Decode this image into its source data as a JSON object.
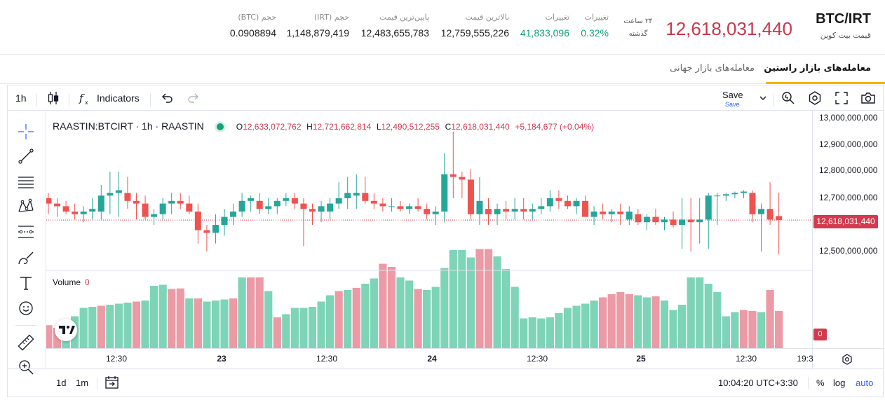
{
  "header": {
    "pair": "BTC/IRT",
    "pair_subtitle": "قیمت بیت کوین",
    "last_price": "12,618,031,440",
    "period_label_1": "۲۴ ساعت",
    "period_label_2": "گذشته",
    "stats": [
      {
        "label": "تغییرات",
        "value": "0.32%",
        "color": "green"
      },
      {
        "label": "تغییرات",
        "value": "41,833,096",
        "color": "green"
      },
      {
        "label": "بالاترین قیمت",
        "value": "12,759,555,226",
        "color": "dark"
      },
      {
        "label": "پایین‌ترین قیمت",
        "value": "12,483,655,783",
        "color": "dark"
      },
      {
        "label": "حجم (IRT)",
        "value": "1,148,879,419",
        "color": "dark"
      },
      {
        "label": "حجم (BTC)",
        "value": "0.0908894",
        "color": "dark"
      }
    ]
  },
  "tabs": {
    "active": "معامله‌های بازار راستین",
    "inactive": "معامله‌های بازار جهانی"
  },
  "toolbar": {
    "interval": "1h",
    "indicators": "Indicators",
    "save": "Save",
    "save_sub": "Save"
  },
  "legend": {
    "symbol": "RAASTIN:BTCIRT · 1h · RAASTIN",
    "o_label": "O",
    "o_value": "12,633,072,762",
    "h_label": "H",
    "h_value": "12,721,662,814",
    "l_label": "L",
    "l_value": "12,490,512,255",
    "c_label": "C",
    "c_value": "12,618,031,440",
    "change": "+5,184,677 (+0.04%)",
    "volume_label": "Volume",
    "volume_value": "0"
  },
  "price_tag": "12,618,031,440",
  "volume_tag": "0",
  "bottom_bar": {
    "range_1d": "1d",
    "range_1m": "1m",
    "time": "10:04:20 UTC+3:30",
    "percent": "%",
    "log": "log",
    "auto": "auto"
  },
  "colors": {
    "up": "#26a69a",
    "down": "#ef5350",
    "vol_up": "#7ed4b7",
    "vol_down": "#eb9aa6",
    "brand_red": "#c8374c",
    "accent_yellow": "#f2b410"
  },
  "chart_data": {
    "type": "candlestick",
    "interval": "1h",
    "y_ticks": [
      "13,000,000,000",
      "12,900,000,000",
      "12,800,000,000",
      "12,700,000,000",
      "12,600,000,000",
      "12,500,000,000"
    ],
    "x_ticks": [
      {
        "label": "12:30",
        "bold": false
      },
      {
        "label": "23",
        "bold": true
      },
      {
        "label": "12:30",
        "bold": false
      },
      {
        "label": "24",
        "bold": true
      },
      {
        "label": "12:30",
        "bold": false
      },
      {
        "label": "25",
        "bold": true
      },
      {
        "label": "12:30",
        "bold": false
      },
      {
        "label": "19:3",
        "bold": false
      }
    ],
    "ylim": [
      12450000000,
      13040000000
    ],
    "last_close": 12618031440,
    "candles": [
      [
        12700,
        12720,
        12640,
        12680
      ],
      [
        12680,
        12700,
        12630,
        12670
      ],
      [
        12670,
        12690,
        12640,
        12650
      ],
      [
        12650,
        12680,
        12620,
        12640
      ],
      [
        12640,
        12670,
        12610,
        12650
      ],
      [
        12650,
        12700,
        12620,
        12660
      ],
      [
        12650,
        12750,
        12620,
        12710
      ],
      [
        12710,
        12800,
        12640,
        12720
      ],
      [
        12720,
        12800,
        12630,
        12730
      ],
      [
        12720,
        12780,
        12660,
        12690
      ],
      [
        12690,
        12720,
        12620,
        12680
      ],
      [
        12680,
        12710,
        12620,
        12630
      ],
      [
        12630,
        12660,
        12600,
        12640
      ],
      [
        12640,
        12700,
        12620,
        12680
      ],
      [
        12680,
        12720,
        12640,
        12690
      ],
      [
        12690,
        12720,
        12660,
        12680
      ],
      [
        12680,
        12710,
        12640,
        12650
      ],
      [
        12650,
        12680,
        12530,
        12580
      ],
      [
        12580,
        12600,
        12500,
        12570
      ],
      [
        12570,
        12640,
        12530,
        12600
      ],
      [
        12600,
        12660,
        12560,
        12630
      ],
      [
        12630,
        12680,
        12600,
        12650
      ],
      [
        12650,
        12720,
        12630,
        12690
      ],
      [
        12690,
        12710,
        12650,
        12700
      ],
      [
        12690,
        12720,
        12640,
        12660
      ],
      [
        12660,
        12700,
        12640,
        12670
      ],
      [
        12670,
        12700,
        12640,
        12690
      ],
      [
        12690,
        12720,
        12670,
        12700
      ],
      [
        12700,
        12720,
        12660,
        12680
      ],
      [
        12680,
        12700,
        12520,
        12660
      ],
      [
        12660,
        12680,
        12600,
        12650
      ],
      [
        12650,
        12690,
        12610,
        12670
      ],
      [
        12650,
        12700,
        12620,
        12680
      ],
      [
        12680,
        12760,
        12660,
        12700
      ],
      [
        12700,
        12780,
        12660,
        12720
      ],
      [
        12710,
        12790,
        12660,
        12720
      ],
      [
        12720,
        12780,
        12680,
        12690
      ],
      [
        12690,
        12720,
        12660,
        12680
      ],
      [
        12680,
        12700,
        12650,
        12670
      ],
      [
        12670,
        12700,
        12650,
        12670
      ],
      [
        12670,
        12690,
        12650,
        12660
      ],
      [
        12660,
        12680,
        12640,
        12670
      ],
      [
        12670,
        12700,
        12650,
        12660
      ],
      [
        12660,
        12680,
        12620,
        12640
      ],
      [
        12640,
        12670,
        12600,
        12650
      ],
      [
        12650,
        12870,
        12610,
        12790
      ],
      [
        12790,
        12950,
        12700,
        12780
      ],
      [
        12780,
        12800,
        12700,
        12770
      ],
      [
        12770,
        12810,
        12620,
        12640
      ],
      [
        12640,
        12780,
        12600,
        12690
      ],
      [
        12660,
        12700,
        12600,
        12640
      ],
      [
        12640,
        12680,
        12600,
        12660
      ],
      [
        12660,
        12690,
        12620,
        12650
      ],
      [
        12650,
        12700,
        12620,
        12660
      ],
      [
        12660,
        12700,
        12620,
        12650
      ],
      [
        12650,
        12680,
        12620,
        12660
      ],
      [
        12660,
        12700,
        12640,
        12670
      ],
      [
        12670,
        12730,
        12650,
        12700
      ],
      [
        12700,
        12730,
        12660,
        12690
      ],
      [
        12690,
        12710,
        12660,
        12670
      ],
      [
        12670,
        12700,
        12640,
        12690
      ],
      [
        12690,
        12710,
        12630,
        12630
      ],
      [
        12630,
        12670,
        12600,
        12650
      ],
      [
        12650,
        12680,
        12620,
        12640
      ],
      [
        12640,
        12660,
        12610,
        12650
      ],
      [
        12650,
        12680,
        12600,
        12640
      ],
      [
        12620,
        12670,
        12600,
        12650
      ],
      [
        12640,
        12660,
        12600,
        12610
      ],
      [
        12610,
        12640,
        12580,
        12630
      ],
      [
        12630,
        12660,
        12600,
        12610
      ],
      [
        12610,
        12630,
        12580,
        12620
      ],
      [
        12620,
        12650,
        12590,
        12600
      ],
      [
        12600,
        12700,
        12510,
        12620
      ],
      [
        12620,
        12700,
        12500,
        12610
      ],
      [
        12610,
        12700,
        12530,
        12620
      ],
      [
        12620,
        12720,
        12510,
        12710
      ],
      [
        12710,
        12720,
        12600,
        12710
      ],
      [
        12710,
        12720,
        12690,
        12715
      ],
      [
        12715,
        12725,
        12700,
        12720
      ],
      [
        12720,
        12730,
        12700,
        12725
      ],
      [
        12720,
        12730,
        12610,
        12640
      ],
      [
        12640,
        12680,
        12500,
        12660
      ],
      [
        12660,
        12760,
        12600,
        12620
      ],
      [
        12633,
        12721,
        12490,
        12618
      ]
    ],
    "volumes": [
      [
        45,
        0
      ],
      [
        40,
        0
      ],
      [
        55,
        1
      ],
      [
        62,
        1
      ],
      [
        78,
        1
      ],
      [
        80,
        1
      ],
      [
        82,
        0
      ],
      [
        84,
        1
      ],
      [
        86,
        1
      ],
      [
        88,
        1
      ],
      [
        90,
        0
      ],
      [
        92,
        1
      ],
      [
        120,
        1
      ],
      [
        122,
        1
      ],
      [
        114,
        0
      ],
      [
        115,
        0
      ],
      [
        96,
        1
      ],
      [
        96,
        0
      ],
      [
        90,
        1
      ],
      [
        92,
        1
      ],
      [
        94,
        1
      ],
      [
        96,
        0
      ],
      [
        136,
        1
      ],
      [
        136,
        0
      ],
      [
        136,
        0
      ],
      [
        110,
        1
      ],
      [
        60,
        0
      ],
      [
        66,
        1
      ],
      [
        78,
        1
      ],
      [
        78,
        1
      ],
      [
        80,
        1
      ],
      [
        90,
        1
      ],
      [
        102,
        1
      ],
      [
        110,
        0
      ],
      [
        112,
        1
      ],
      [
        116,
        0
      ],
      [
        124,
        1
      ],
      [
        134,
        1
      ],
      [
        162,
        0
      ],
      [
        156,
        0
      ],
      [
        136,
        1
      ],
      [
        130,
        1
      ],
      [
        114,
        0
      ],
      [
        112,
        1
      ],
      [
        118,
        1
      ],
      [
        154,
        1
      ],
      [
        188,
        1
      ],
      [
        188,
        1
      ],
      [
        174,
        1
      ],
      [
        190,
        0
      ],
      [
        190,
        0
      ],
      [
        176,
        1
      ],
      [
        152,
        1
      ],
      [
        118,
        1
      ],
      [
        58,
        1
      ],
      [
        60,
        1
      ],
      [
        58,
        1
      ],
      [
        60,
        1
      ],
      [
        68,
        1
      ],
      [
        78,
        1
      ],
      [
        82,
        1
      ],
      [
        86,
        1
      ],
      [
        92,
        1
      ],
      [
        98,
        0
      ],
      [
        104,
        0
      ],
      [
        108,
        0
      ],
      [
        104,
        0
      ],
      [
        102,
        1
      ],
      [
        98,
        1
      ],
      [
        100,
        0
      ],
      [
        92,
        1
      ],
      [
        74,
        1
      ],
      [
        84,
        1
      ],
      [
        136,
        1
      ],
      [
        136,
        1
      ],
      [
        124,
        1
      ],
      [
        108,
        1
      ],
      [
        62,
        1
      ],
      [
        70,
        1
      ],
      [
        74,
        0
      ],
      [
        72,
        0
      ],
      [
        70,
        1
      ],
      [
        112,
        0
      ],
      [
        72,
        0
      ]
    ]
  }
}
